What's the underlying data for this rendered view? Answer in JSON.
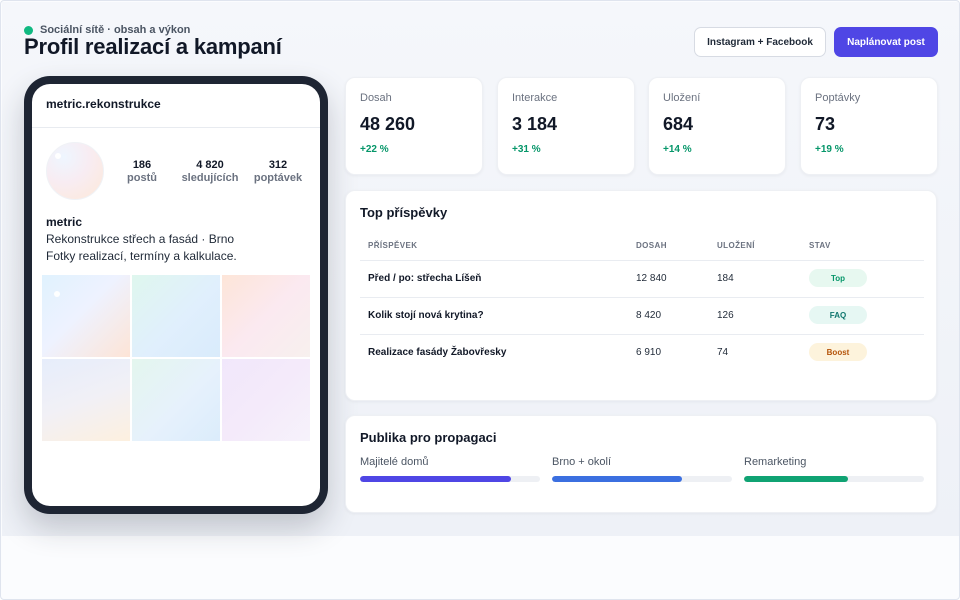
{
  "header": {
    "kicker": "Sociální sítě · obsah a výkon",
    "title": "Profil realizací a kampaní",
    "secondary_button": "Instagram + Facebook",
    "primary_button": "Naplánovat post"
  },
  "profile": {
    "username": "metric.rekonstrukce",
    "stats": [
      {
        "value": "186",
        "label": "postů"
      },
      {
        "value": "4 820",
        "label": "sledujících"
      },
      {
        "value": "312",
        "label": "poptávek"
      }
    ],
    "bio_name": "metric",
    "bio_lines": [
      "Rekonstrukce střech a fasád · Brno",
      "Fotky realizací, termíny a kalkulace."
    ],
    "grid_tiles": 6
  },
  "kpis": [
    {
      "label": "Dosah",
      "value": "48 260",
      "delta": "+22 %"
    },
    {
      "label": "Interakce",
      "value": "3 184",
      "delta": "+31 %"
    },
    {
      "label": "Uložení",
      "value": "684",
      "delta": "+14 %"
    },
    {
      "label": "Poptávky",
      "value": "73",
      "delta": "+19 %"
    }
  ],
  "top_posts": {
    "title": "Top příspěvky",
    "columns": [
      "PŘÍSPĚVEK",
      "DOSAH",
      "ULOŽENÍ",
      "STAV"
    ],
    "rows": [
      {
        "post": "Před / po: střecha Líšeň",
        "reach": "12 840",
        "saves": "184",
        "status": "Top",
        "status_color": "#059669",
        "status_bg": "#e7f8f0"
      },
      {
        "post": "Kolik stojí nová krytina?",
        "reach": "8 420",
        "saves": "126",
        "status": "FAQ",
        "status_color": "#0f766e",
        "status_bg": "#e6f7f3"
      },
      {
        "post": "Realizace fasády Žabovřesky",
        "reach": "6 910",
        "saves": "74",
        "status": "Boost",
        "status_color": "#b45309",
        "status_bg": "#fdf3dc"
      }
    ]
  },
  "audience": {
    "title": "Publika pro propagaci",
    "items": [
      {
        "label": "Majitelé domů",
        "fill": 0.84,
        "color": "#4f46e5"
      },
      {
        "label": "Brno + okolí",
        "fill": 0.72,
        "color": "#3b6fe0"
      },
      {
        "label": "Remarketing",
        "fill": 0.58,
        "color": "#10a373"
      }
    ]
  },
  "colors": {
    "accent": "#4f46e5",
    "positive": "#059669",
    "phone_frame": "#1e2533"
  }
}
